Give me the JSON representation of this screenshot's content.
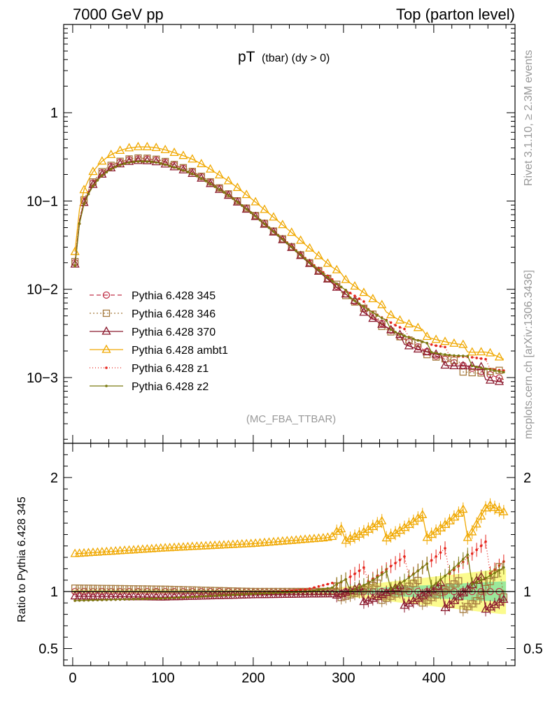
{
  "header": {
    "left": "7000 GeV pp",
    "right": "Top (parton level)"
  },
  "title": {
    "main": "pT",
    "sub": "(tbar) (dy > 0)"
  },
  "side_text": {
    "rivet": "Rivet 3.1.10, ≥ 2.3M events",
    "mcplots": "mcplots.cern.ch [arXiv:1306.3436]"
  },
  "analysis_label": "(MC_FBA_TTBAR)",
  "ratio_ylabel": "Ratio to Pythia 6.428 345",
  "colors": {
    "p345": "#c0334a",
    "p346": "#a57a3e",
    "p370": "#8b1a2e",
    "ambt1": "#f0a800",
    "z1": "#e6241c",
    "z2": "#7a7a10",
    "band_yellow": "#fbfb8e",
    "band_green": "#9be89b"
  },
  "chart_data": {
    "type": "line",
    "x_range": [
      -10,
      490
    ],
    "y_range_main": [
      0.00018,
      10
    ],
    "y_scale_main": "log",
    "y_range_ratio": [
      0.35,
      2.3
    ],
    "x_ticks": [
      "0",
      "100",
      "200",
      "300",
      "400"
    ],
    "y_ticks_main": [
      "1",
      "10−1",
      "10−2",
      "10−3"
    ],
    "y_ticks_ratio": [
      "2",
      "1",
      "0.5"
    ],
    "legend_position": "center-left",
    "x": [
      2.5,
      7.5,
      12.5,
      17.5,
      22.5,
      27.5,
      32.5,
      37.5,
      42.5,
      47.5,
      52.5,
      57.5,
      62.5,
      67.5,
      72.5,
      77.5,
      82.5,
      87.5,
      92.5,
      97.5,
      102.5,
      107.5,
      112.5,
      117.5,
      122.5,
      127.5,
      132.5,
      137.5,
      142.5,
      147.5,
      152.5,
      157.5,
      162.5,
      167.5,
      172.5,
      177.5,
      182.5,
      187.5,
      192.5,
      197.5,
      202.5,
      207.5,
      212.5,
      217.5,
      222.5,
      227.5,
      232.5,
      237.5,
      242.5,
      247.5,
      252.5,
      257.5,
      262.5,
      267.5,
      272.5,
      277.5,
      282.5,
      287.5,
      292.5,
      297.5,
      302.5,
      307.5,
      312.5,
      317.5,
      322.5,
      327.5,
      332.5,
      337.5,
      342.5,
      347.5,
      352.5,
      357.5,
      362.5,
      367.5,
      372.5,
      377.5,
      382.5,
      387.5,
      392.5,
      397.5,
      402.5,
      407.5,
      412.5,
      417.5,
      422.5,
      427.5,
      432.5,
      437.5,
      442.5,
      447.5,
      452.5,
      457.5,
      462.5,
      467.5,
      472.5,
      477.5
    ],
    "ref_anchors": [
      [
        2.5,
        0.02
      ],
      [
        7.5,
        0.06
      ],
      [
        12.5,
        0.1
      ],
      [
        17.5,
        0.13
      ],
      [
        22.5,
        0.16
      ],
      [
        30,
        0.2
      ],
      [
        40,
        0.24
      ],
      [
        50,
        0.27
      ],
      [
        60,
        0.29
      ],
      [
        70,
        0.3
      ],
      [
        80,
        0.3
      ],
      [
        90,
        0.295
      ],
      [
        100,
        0.28
      ],
      [
        110,
        0.26
      ],
      [
        120,
        0.24
      ],
      [
        130,
        0.22
      ],
      [
        140,
        0.195
      ],
      [
        150,
        0.17
      ],
      [
        160,
        0.145
      ],
      [
        170,
        0.125
      ],
      [
        180,
        0.105
      ],
      [
        190,
        0.087
      ],
      [
        200,
        0.072
      ],
      [
        220,
        0.048
      ],
      [
        240,
        0.032
      ],
      [
        260,
        0.021
      ],
      [
        280,
        0.014
      ],
      [
        300,
        0.0093
      ],
      [
        320,
        0.0063
      ],
      [
        340,
        0.0043
      ],
      [
        360,
        0.003
      ],
      [
        380,
        0.0023
      ],
      [
        400,
        0.0018
      ],
      [
        420,
        0.0015
      ],
      [
        440,
        0.0013
      ],
      [
        460,
        0.0011
      ],
      [
        477.5,
        0.00095
      ]
    ],
    "series": [
      {
        "name": "Pythia 6.428 345",
        "ratio_anchors": [
          [
            0,
            1.0
          ],
          [
            480,
            1.0
          ]
        ],
        "marker": "circle",
        "dash": "6,4"
      },
      {
        "name": "Pythia 6.428 346",
        "ratio_anchors": [
          [
            0,
            1.03
          ],
          [
            100,
            1.02
          ],
          [
            200,
            1.0
          ],
          [
            300,
            1.0
          ],
          [
            400,
            1.0
          ],
          [
            450,
            0.95
          ],
          [
            477.5,
            1.1
          ]
        ],
        "marker": "square",
        "dash": "2,3"
      },
      {
        "name": "Pythia 6.428 370",
        "ratio_anchors": [
          [
            0,
            0.96
          ],
          [
            100,
            0.95
          ],
          [
            200,
            0.97
          ],
          [
            300,
            0.98
          ],
          [
            400,
            0.96
          ],
          [
            450,
            1.0
          ],
          [
            477.5,
            0.93
          ]
        ],
        "marker": "triangle",
        "dash": ""
      },
      {
        "name": "Pythia 6.428 ambt1",
        "ratio_anchors": [
          [
            0,
            1.33
          ],
          [
            100,
            1.38
          ],
          [
            200,
            1.42
          ],
          [
            280,
            1.47
          ],
          [
            300,
            1.5
          ],
          [
            350,
            1.55
          ],
          [
            400,
            1.58
          ],
          [
            440,
            1.6
          ],
          [
            460,
            1.75
          ],
          [
            477.5,
            1.55
          ]
        ],
        "marker": "triangle",
        "dash": ""
      },
      {
        "name": "Pythia 6.428 z1",
        "ratio_anchors": [
          [
            0,
            0.92
          ],
          [
            100,
            0.94
          ],
          [
            200,
            0.98
          ],
          [
            260,
            1.02
          ],
          [
            300,
            1.1
          ],
          [
            350,
            1.2
          ],
          [
            400,
            1.25
          ],
          [
            440,
            1.3
          ],
          [
            477.5,
            1.3
          ]
        ],
        "marker": "dot",
        "dash": "1,3"
      },
      {
        "name": "Pythia 6.428 z2",
        "ratio_anchors": [
          [
            0,
            0.92
          ],
          [
            100,
            0.94
          ],
          [
            200,
            0.98
          ],
          [
            260,
            1.0
          ],
          [
            300,
            1.05
          ],
          [
            350,
            1.1
          ],
          [
            400,
            1.15
          ],
          [
            440,
            1.2
          ],
          [
            477.5,
            1.1
          ]
        ],
        "marker": "dot",
        "dash": ""
      }
    ]
  }
}
